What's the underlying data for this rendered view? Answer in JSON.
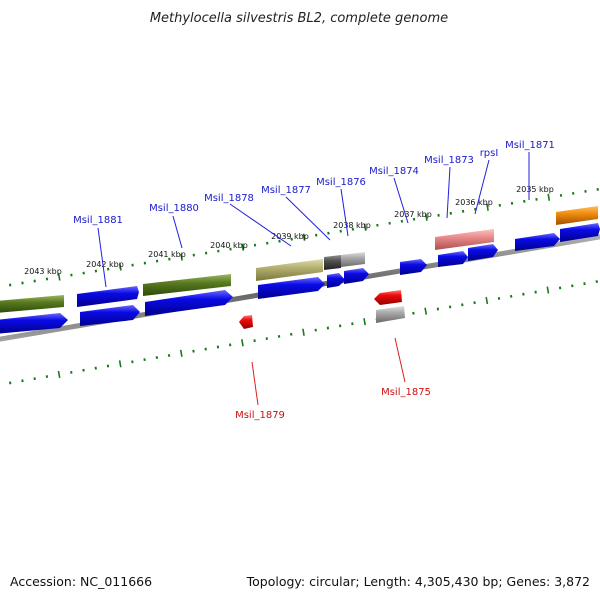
{
  "title": "Methylocella silvestris BL2, complete genome",
  "footer": {
    "accession": "Accession: NC_011666",
    "topology": "Topology: circular; Length: 4,305,430 bp; Genes: 3,872"
  },
  "scale_labels": [
    "2043 kbp",
    "2042 kbp",
    "2041 kbp",
    "2040 kbp",
    "2039 kbp",
    "2038 kbp",
    "2037 kbp",
    "2036 kbp",
    "2035 kbp"
  ],
  "gene_labels": {
    "forward": [
      "Msil_1881",
      "Msil_1880",
      "Msil_1878",
      "Msil_1877",
      "Msil_1876",
      "Msil_1874",
      "Msil_1873",
      "rpsI",
      "Msil_1871"
    ],
    "reverse": [
      "Msil_1879",
      "Msil_1875"
    ]
  },
  "colors": {
    "forward_cds": "#0a0ae6",
    "reverse_cds": "#e60a0a",
    "olive_feature": "#5a7a20",
    "khaki_feature": "#b4b070",
    "pink_feature": "#e88a8a",
    "orange_feature": "#f08c10",
    "grey_feature": "#a8a8a8",
    "dark_feature": "#505050",
    "backbone": "#707070",
    "tick": "#1a7a1a",
    "forward_label": "#1a1acc",
    "reverse_label": "#cc1111"
  }
}
